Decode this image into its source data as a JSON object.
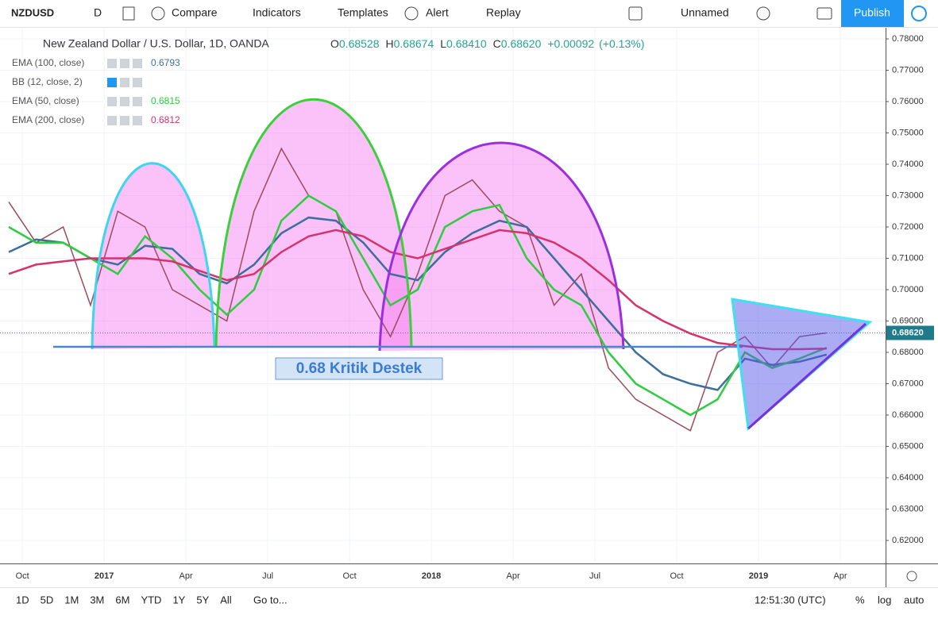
{
  "toolbar": {
    "symbol": "NZDUSD",
    "interval": "D",
    "compare": "Compare",
    "indicators": "Indicators",
    "templates": "Templates",
    "alert": "Alert",
    "replay": "Replay",
    "layout": "Unnamed",
    "publish": "Publish"
  },
  "legend": {
    "ohlc": [
      {
        "label": "O",
        "value": "0.68528"
      },
      {
        "label": "H",
        "value": "0.68674"
      },
      {
        "label": "L",
        "value": "0.68410"
      },
      {
        "label": "C",
        "value": "0.68620"
      }
    ],
    "change": "+0.00092",
    "change_pct": "(+0.13%)"
  },
  "hidden_indicators": [
    {
      "name": "BB (12, close, 2)"
    }
  ],
  "annotations": {
    "support_label": "0.68 Kritik Destek"
  },
  "range_bar": {
    "ranges": [
      "1D",
      "5D",
      "1M",
      "3M",
      "6M",
      "YTD",
      "1Y",
      "5Y",
      "All"
    ],
    "goto": "Go to...",
    "clock": "12:51:30 (UTC)",
    "percent": "%",
    "log": "log",
    "auto": "auto"
  },
  "chart_data": {
    "type": "line",
    "x": [
      0.5,
      1.5,
      2.5,
      3.5,
      4.5,
      5.5,
      6.5,
      7.5,
      8.5,
      9.5,
      10.5,
      11.5,
      12.5,
      13.5,
      14.5,
      15.5,
      16.5,
      17.5,
      18.5,
      19.5,
      20.5,
      21.5,
      22.5,
      23.5,
      24.5,
      25.5,
      26.5,
      27.5,
      28.5,
      29.5,
      30.5
    ],
    "xlim": [
      0.18,
      32.66
    ],
    "xticks": [
      {
        "value": 1,
        "label": "Oct"
      },
      {
        "value": 4,
        "label": "2017"
      },
      {
        "value": 7,
        "label": "Apr"
      },
      {
        "value": 10,
        "label": "Jul"
      },
      {
        "value": 13,
        "label": "Oct"
      },
      {
        "value": 16,
        "label": "2018"
      },
      {
        "value": 19,
        "label": "Apr"
      },
      {
        "value": 22,
        "label": "Jul"
      },
      {
        "value": 25,
        "label": "Oct"
      },
      {
        "value": 28,
        "label": "2019"
      },
      {
        "value": 31,
        "label": "Apr"
      }
    ],
    "ylim": [
      0.61266,
      0.78354
    ],
    "yticks": [
      {
        "value": 0.62,
        "label": "0.62000"
      },
      {
        "value": 0.63,
        "label": "0.63000"
      },
      {
        "value": 0.64,
        "label": "0.64000"
      },
      {
        "value": 0.65,
        "label": "0.65000"
      },
      {
        "value": 0.66,
        "label": "0.66000"
      },
      {
        "value": 0.67,
        "label": "0.67000"
      },
      {
        "value": 0.68,
        "label": "0.68000"
      },
      {
        "value": 0.69,
        "label": "0.69000"
      },
      {
        "value": 0.7,
        "label": "0.70000"
      },
      {
        "value": 0.71,
        "label": "0.71000"
      },
      {
        "value": 0.72,
        "label": "0.72000"
      },
      {
        "value": 0.73,
        "label": "0.73000"
      },
      {
        "value": 0.74,
        "label": "0.74000"
      },
      {
        "value": 0.75,
        "label": "0.75000"
      },
      {
        "value": 0.76,
        "label": "0.76000"
      },
      {
        "value": 0.77,
        "label": "0.77000"
      },
      {
        "value": 0.78,
        "label": "0.78000"
      }
    ],
    "grid": true,
    "price_label": {
      "value": 0.6862,
      "label": "0.68620"
    },
    "series": [
      {
        "name": "New Zealand Dollar / U.S. Dollar, 1D, OANDA",
        "color": "#9c4b5e",
        "values": [
          0.728,
          0.715,
          0.72,
          0.695,
          0.725,
          0.72,
          0.7,
          0.695,
          0.69,
          0.725,
          0.745,
          0.73,
          0.725,
          0.7,
          0.685,
          0.705,
          0.73,
          0.735,
          0.725,
          0.72,
          0.695,
          0.705,
          0.675,
          0.665,
          0.66,
          0.655,
          0.68,
          0.685,
          0.675,
          0.685,
          0.6862
        ]
      },
      {
        "name": "EMA (100, close)",
        "legend_value": "0.6793",
        "color": "#3d6e9c",
        "values": [
          0.712,
          0.716,
          0.715,
          0.71,
          0.708,
          0.714,
          0.713,
          0.705,
          0.702,
          0.708,
          0.718,
          0.723,
          0.722,
          0.715,
          0.705,
          0.703,
          0.712,
          0.718,
          0.722,
          0.72,
          0.71,
          0.7,
          0.69,
          0.68,
          0.673,
          0.67,
          0.668,
          0.678,
          0.676,
          0.677,
          0.6793
        ]
      },
      {
        "name": "EMA (50, close)",
        "legend_value": "0.6815",
        "color": "#2ecc40",
        "values": [
          0.72,
          0.715,
          0.715,
          0.71,
          0.705,
          0.717,
          0.71,
          0.7,
          0.692,
          0.7,
          0.722,
          0.73,
          0.725,
          0.71,
          0.695,
          0.7,
          0.72,
          0.725,
          0.727,
          0.71,
          0.7,
          0.695,
          0.68,
          0.67,
          0.665,
          0.66,
          0.665,
          0.68,
          0.675,
          0.678,
          0.6815
        ]
      },
      {
        "name": "EMA (200, close)",
        "legend_value": "0.6812",
        "color": "#d6336c",
        "values": [
          0.705,
          0.708,
          0.709,
          0.71,
          0.71,
          0.71,
          0.709,
          0.706,
          0.703,
          0.705,
          0.712,
          0.717,
          0.719,
          0.717,
          0.712,
          0.71,
          0.713,
          0.716,
          0.719,
          0.718,
          0.715,
          0.71,
          0.703,
          0.695,
          0.69,
          0.686,
          0.683,
          0.682,
          0.681,
          0.681,
          0.6812
        ]
      }
    ]
  }
}
